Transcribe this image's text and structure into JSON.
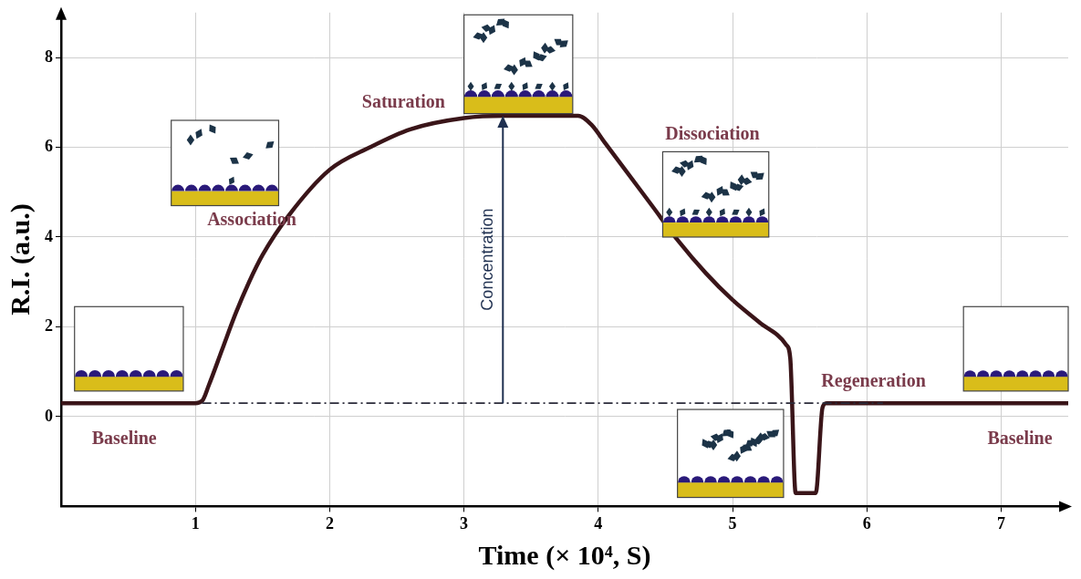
{
  "chart_data": {
    "type": "line",
    "x_label": "Time (× 10⁴, S)",
    "y_label": "R.I. (a.u.)",
    "x": [
      0,
      1.0,
      1.05,
      1.1,
      1.2,
      1.3,
      1.4,
      1.5,
      1.7,
      2.0,
      2.3,
      2.6,
      3.0,
      3.3,
      3.85,
      3.95,
      4.05,
      4.2,
      4.4,
      4.6,
      4.8,
      5.0,
      5.2,
      5.4,
      5.43,
      5.47,
      5.62,
      5.67,
      5.7,
      7.5
    ],
    "values": [
      0.3,
      0.3,
      0.35,
      0.7,
      1.5,
      2.3,
      3.0,
      3.6,
      4.5,
      5.5,
      6.0,
      6.4,
      6.65,
      6.7,
      6.7,
      6.5,
      6.1,
      5.5,
      4.7,
      3.9,
      3.2,
      2.6,
      2.1,
      1.6,
      1.3,
      -1.7,
      -1.7,
      0.2,
      0.3,
      0.3
    ],
    "color": "#3a1519",
    "xlim": [
      0,
      7.5
    ],
    "xticks": [
      1,
      2,
      3,
      4,
      5,
      6,
      7
    ],
    "ylim": [
      -2,
      9
    ],
    "yticks": [
      0,
      2,
      4,
      6,
      8
    ],
    "grid": true,
    "baseline_line": {
      "x": [
        1.05,
        6.12
      ],
      "y": 0.3,
      "line_style": "dashdot"
    },
    "arrow": {
      "text": "Concentration",
      "x": 3.29,
      "y": [
        0.3,
        6.7
      ]
    },
    "annotations": [
      {
        "text": "Baseline",
        "x": 0.47,
        "y": -0.5
      },
      {
        "text": "Association",
        "x": 1.42,
        "y": 4.37
      },
      {
        "text": "Saturation",
        "x": 2.55,
        "y": 6.98
      },
      {
        "text": "Dissociation",
        "x": 4.85,
        "y": 6.27
      },
      {
        "text": "Regeneration",
        "x": 6.05,
        "y": 0.78
      },
      {
        "text": "Baseline",
        "x": 7.14,
        "y": -0.5
      }
    ]
  }
}
